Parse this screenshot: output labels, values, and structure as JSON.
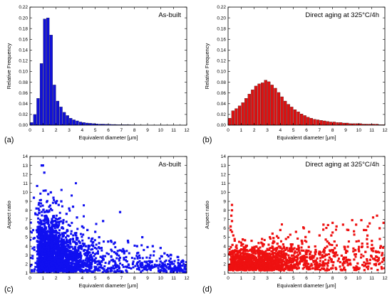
{
  "chart_data": [
    {
      "id": "a",
      "panel_label": "(a)",
      "type": "bar",
      "annotation": "As-built",
      "xlabel": "Equivalent diameter [μm]",
      "ylabel": "Relative Frequency",
      "xlim": [
        0,
        12
      ],
      "ylim": [
        0,
        0.22
      ],
      "xticks": [
        "0",
        "1",
        "2",
        "3",
        "4",
        "5",
        "6",
        "7",
        "8",
        "9",
        "10",
        "11",
        "12"
      ],
      "yticks": [
        "0.00",
        "0.02",
        "0.04",
        "0.06",
        "0.08",
        "0.10",
        "0.12",
        "0.14",
        "0.16",
        "0.18",
        "0.20",
        "0.22"
      ],
      "bin_width": 0.25,
      "color": "#1010d8",
      "x": [
        0.125,
        0.375,
        0.625,
        0.875,
        1.125,
        1.375,
        1.625,
        1.875,
        2.125,
        2.375,
        2.625,
        2.875,
        3.125,
        3.375,
        3.625,
        3.875,
        4.125,
        4.375,
        4.625,
        4.875,
        5.125,
        5.375,
        5.625,
        5.875,
        6.125,
        6.375,
        6.625,
        6.875,
        7.125,
        7.375,
        7.625,
        7.875,
        8.125,
        8.375,
        8.625,
        8.875,
        9.125,
        9.375,
        9.625,
        9.875,
        10.125,
        10.375,
        10.625,
        10.875,
        11.125,
        11.375,
        11.625,
        11.875
      ],
      "values": [
        0.005,
        0.02,
        0.05,
        0.115,
        0.198,
        0.2,
        0.168,
        0.075,
        0.045,
        0.034,
        0.024,
        0.018,
        0.013,
        0.01,
        0.008,
        0.006,
        0.005,
        0.004,
        0.0035,
        0.003,
        0.0025,
        0.002,
        0.002,
        0.0018,
        0.0015,
        0.0013,
        0.0012,
        0.001,
        0.001,
        0.0009,
        0.0008,
        0.0007,
        0.0006,
        0.0006,
        0.0005,
        0.0005,
        0.0004,
        0.0004,
        0.0004,
        0.0003,
        0.0003,
        0.0003,
        0.0002,
        0.0002,
        0.0002,
        0.0002,
        0.0001,
        0.0001
      ]
    },
    {
      "id": "b",
      "panel_label": "(b)",
      "type": "bar",
      "annotation": "Direct aging at 325°C/4h",
      "xlabel": "Equivalent diameter [μm]",
      "ylabel": "Relative Frequency",
      "xlim": [
        0,
        12
      ],
      "ylim": [
        0,
        0.22
      ],
      "xticks": [
        "0",
        "1",
        "2",
        "3",
        "4",
        "5",
        "6",
        "7",
        "8",
        "9",
        "10",
        "11",
        "12"
      ],
      "yticks": [
        "0.00",
        "0.02",
        "0.04",
        "0.06",
        "0.08",
        "0.10",
        "0.12",
        "0.14",
        "0.16",
        "0.18",
        "0.20",
        "0.22"
      ],
      "bin_width": 0.25,
      "color": "#dd1111",
      "x": [
        0.125,
        0.375,
        0.625,
        0.875,
        1.125,
        1.375,
        1.625,
        1.875,
        2.125,
        2.375,
        2.625,
        2.875,
        3.125,
        3.375,
        3.625,
        3.875,
        4.125,
        4.375,
        4.625,
        4.875,
        5.125,
        5.375,
        5.625,
        5.875,
        6.125,
        6.375,
        6.625,
        6.875,
        7.125,
        7.375,
        7.625,
        7.875,
        8.125,
        8.375,
        8.625,
        8.875,
        9.125,
        9.375,
        9.625,
        9.875,
        10.125,
        10.375,
        10.625,
        10.875,
        11.125,
        11.375,
        11.625,
        11.875
      ],
      "values": [
        0.013,
        0.027,
        0.031,
        0.036,
        0.042,
        0.05,
        0.058,
        0.066,
        0.073,
        0.077,
        0.079,
        0.084,
        0.081,
        0.075,
        0.069,
        0.061,
        0.053,
        0.045,
        0.039,
        0.034,
        0.029,
        0.025,
        0.021,
        0.018,
        0.015,
        0.013,
        0.011,
        0.01,
        0.009,
        0.008,
        0.007,
        0.006,
        0.006,
        0.005,
        0.005,
        0.004,
        0.004,
        0.003,
        0.003,
        0.003,
        0.003,
        0.002,
        0.002,
        0.002,
        0.002,
        0.002,
        0.001,
        0.001
      ]
    },
    {
      "id": "c",
      "panel_label": "(c)",
      "type": "scatter",
      "annotation": "As-built",
      "xlabel": "Equivalent diameter [μm]",
      "ylabel": "Aspect ratio",
      "xlim": [
        0,
        12
      ],
      "ylim": [
        1,
        14
      ],
      "xticks": [
        "0",
        "1",
        "2",
        "3",
        "4",
        "5",
        "6",
        "7",
        "8",
        "9",
        "10",
        "11",
        "12"
      ],
      "yticks": [
        "1",
        "2",
        "3",
        "4",
        "5",
        "6",
        "7",
        "8",
        "9",
        "10",
        "11",
        "12",
        "13",
        "14"
      ],
      "color": "#1010f0",
      "points": [
        [
          0.3,
          9.4
        ],
        [
          0.5,
          8.2
        ],
        [
          0.7,
          8.8
        ],
        [
          0.9,
          13.0
        ],
        [
          1.0,
          13.0
        ],
        [
          1.2,
          10.2
        ],
        [
          1.1,
          12.2
        ],
        [
          1.4,
          9.8
        ],
        [
          1.6,
          10.0
        ],
        [
          1.8,
          9.4
        ],
        [
          2.0,
          8.8
        ],
        [
          2.2,
          8.6
        ],
        [
          2.4,
          9.0
        ],
        [
          2.8,
          7.6
        ],
        [
          3.0,
          8.2
        ],
        [
          3.3,
          8.4
        ],
        [
          3.6,
          7.2
        ],
        [
          4.0,
          6.2
        ],
        [
          4.4,
          5.8
        ],
        [
          5.0,
          5.6
        ],
        [
          5.6,
          6.8
        ],
        [
          5.3,
          5.0
        ],
        [
          6.2,
          4.6
        ],
        [
          6.9,
          7.8
        ],
        [
          6.5,
          4.4
        ],
        [
          7.5,
          4.6
        ],
        [
          8.2,
          4.0
        ],
        [
          8.6,
          5.0
        ],
        [
          9.0,
          3.9
        ],
        [
          9.4,
          4.0
        ],
        [
          10.0,
          3.8
        ],
        [
          10.3,
          3.2
        ],
        [
          10.8,
          3.0
        ],
        [
          11.3,
          2.8
        ],
        [
          11.7,
          2.4
        ],
        [
          11.9,
          1.8
        ]
      ]
    },
    {
      "id": "d",
      "panel_label": "(d)",
      "type": "scatter",
      "annotation": "Direct aging at 325°C/4h",
      "xlabel": "Equivalent diameter [μm]",
      "ylabel": "Aspect ratio",
      "xlim": [
        0,
        12
      ],
      "ylim": [
        1,
        14
      ],
      "xticks": [
        "0",
        "1",
        "2",
        "3",
        "4",
        "5",
        "6",
        "7",
        "8",
        "9",
        "10",
        "11",
        "12"
      ],
      "yticks": [
        "1",
        "2",
        "3",
        "4",
        "5",
        "6",
        "7",
        "8",
        "9",
        "10",
        "11",
        "12",
        "13",
        "14"
      ],
      "color": "#ee1111",
      "points": [
        [
          0.3,
          8.6
        ],
        [
          0.3,
          8.0
        ],
        [
          0.25,
          7.4
        ],
        [
          0.3,
          6.8
        ],
        [
          0.2,
          6.2
        ],
        [
          0.3,
          5.6
        ],
        [
          0.4,
          5.2
        ],
        [
          0.5,
          4.8
        ],
        [
          0.2,
          5.8
        ],
        [
          1.0,
          4.4
        ],
        [
          1.8,
          4.6
        ],
        [
          2.6,
          4.8
        ],
        [
          3.2,
          5.0
        ],
        [
          3.4,
          5.4
        ],
        [
          4.0,
          5.8
        ],
        [
          4.6,
          5.0
        ],
        [
          5.2,
          5.6
        ],
        [
          5.8,
          6.0
        ],
        [
          6.2,
          5.6
        ],
        [
          7.0,
          5.2
        ],
        [
          7.3,
          6.4
        ],
        [
          7.9,
          5.2
        ],
        [
          8.3,
          6.2
        ],
        [
          8.8,
          6.4
        ],
        [
          9.2,
          5.8
        ],
        [
          9.8,
          6.4
        ],
        [
          10.2,
          6.9
        ],
        [
          10.4,
          5.8
        ],
        [
          10.7,
          6.2
        ],
        [
          11.1,
          7.2
        ],
        [
          11.4,
          7.4
        ],
        [
          11.6,
          6.0
        ],
        [
          11.9,
          6.6
        ],
        [
          9.5,
          6.9
        ],
        [
          8.0,
          6.6
        ]
      ]
    }
  ]
}
